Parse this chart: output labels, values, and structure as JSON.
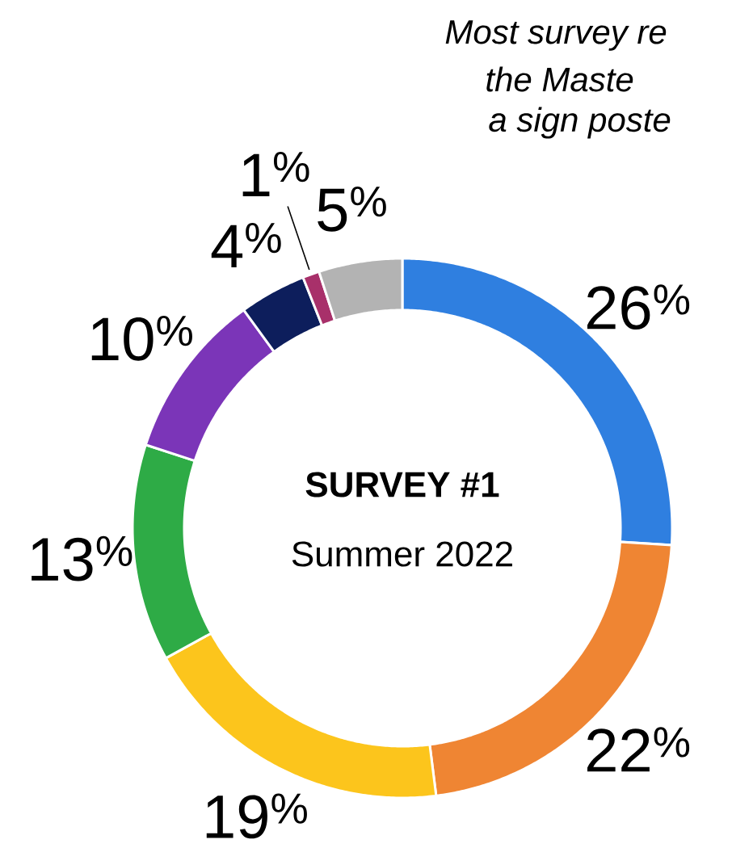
{
  "chart_data": {
    "type": "donut",
    "title": "SURVEY #1",
    "subtitle": "Summer 2022",
    "categories": [
      null,
      null,
      null,
      null,
      null,
      null,
      null,
      null
    ],
    "values": [
      26,
      22,
      19,
      13,
      10,
      4,
      1,
      5
    ],
    "colors": [
      "#2f7fe0",
      "#ef8533",
      "#fcc51c",
      "#2eab46",
      "#7b35b8",
      "#0d1e5c",
      "#a8306a",
      "#b3b3b3"
    ],
    "value_labels": [
      "26$^{%}$",
      "22$^{%}$",
      "19$^{%}$",
      "13$^{%}$",
      "10$^{%}$",
      "4$^{%}$",
      "1$^{%}$",
      "5$^{%}$"
    ],
    "annotations": [
      "Most survey re",
      "the Maste",
      "a sign poste"
    ]
  }
}
